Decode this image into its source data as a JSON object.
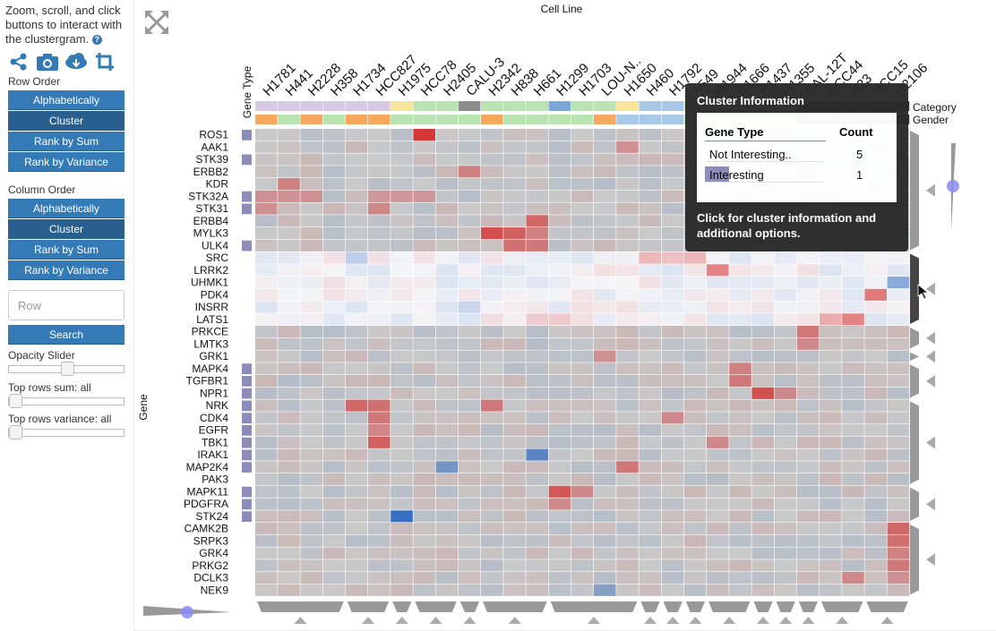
{
  "sidebar": {
    "intro": "Zoom, scroll, and click buttons to interact with the clustergram.",
    "help_icon": "?",
    "icons": [
      "share-icon",
      "camera-icon",
      "cloud-download-icon",
      "crop-icon"
    ],
    "row_order": {
      "label": "Row Order",
      "buttons": [
        "Alphabetically",
        "Cluster",
        "Rank by Sum",
        "Rank by Variance"
      ],
      "active": "Cluster"
    },
    "col_order": {
      "label": "Column Order",
      "buttons": [
        "Alphabetically",
        "Cluster",
        "Rank by Sum",
        "Rank by Variance"
      ],
      "active": "Cluster"
    },
    "search": {
      "placeholder": "Row",
      "button": "Search"
    },
    "opacity": {
      "label": "Opacity Slider",
      "value": 0.5
    },
    "top_sum": {
      "label": "Top rows sum: all",
      "value": 0
    },
    "top_var": {
      "label": "Top rows variance: all",
      "value": 0
    }
  },
  "heatmap": {
    "col_title": "Cell Line",
    "row_title": "Gene",
    "row_cat_title": "Gene Type",
    "col_cat_titles": [
      "Category",
      "Gender"
    ],
    "colors": {
      "bg": "#c9c9c9",
      "up": "#d62728",
      "down": "#1f5fbf",
      "interesting": "#8c8cb8",
      "accent": "#337ab7"
    },
    "columns": [
      "H1781",
      "H441",
      "H2228",
      "H358",
      "H1734",
      "HCC827",
      "H1975",
      "HCC78",
      "H2405",
      "CALU-3",
      "H2342",
      "H838",
      "H661",
      "H1299",
      "H1703",
      "LOU-N..",
      "H1650",
      "H460",
      "H1792",
      "A549",
      "H1944",
      "H1666",
      "H1437",
      "H1355",
      "CAL-12T",
      "HCC44",
      "H23",
      "HCC15",
      "H2106"
    ],
    "rows": [
      "ROS1",
      "AAK1",
      "STK39",
      "ERBB2",
      "KDR",
      "STK32A",
      "STK31",
      "ERBB4",
      "MYLK3",
      "ULK4",
      "SRC",
      "LRRK2",
      "UHMK1",
      "PDK4",
      "INSRR",
      "LATS1",
      "PRKCE",
      "LMTK3",
      "GRK1",
      "MAPK4",
      "TGFBR1",
      "NPR1",
      "NRK",
      "CDK4",
      "EGFR",
      "TBK1",
      "IRAK1",
      "MAP2K4",
      "PAK3",
      "MAPK11",
      "PDGFRA",
      "STK24",
      "CAMK2B",
      "SRPK3",
      "GRK4",
      "PRKG2",
      "DCLK3",
      "NEK9"
    ],
    "interesting_rows": [
      "ROS1",
      "STK39",
      "STK32A",
      "STK31",
      "ULK4",
      "MAPK4",
      "TGFBR1",
      "NPR1",
      "NRK",
      "CDK4",
      "EGFR",
      "TBK1",
      "IRAK1",
      "MAP2K4",
      "MAPK11",
      "PDGFRA",
      "STK24"
    ],
    "col_category": [
      "#d8c8e4",
      "#d8c8e4",
      "#d8c8e4",
      "#d8c8e4",
      "#d8c8e4",
      "#d8c8e4",
      "#f6e59a",
      "#b9e3b0",
      "#b9e3b0",
      "#8c8c8c",
      "#b9e3b0",
      "#b9e3b0",
      "#b9e3b0",
      "#7ba7d9",
      "#b9e3b0",
      "#b9e3b0",
      "#f6e59a",
      "#a8c8e8",
      "#a8c8e8",
      "#b9e3b0",
      "#b9e3b0",
      "#b9e3b0",
      "#b9e3b0",
      "#b9e3b0",
      "#2b2b2b",
      "#2b2b2b",
      "#2b2b2b",
      "#2b2b2b",
      "#2b2b2b"
    ],
    "col_gender": [
      "#f6a85e",
      "#b9e3b0",
      "#f6a85e",
      "#b9e3b0",
      "#f6a85e",
      "#f6a85e",
      "#b9e3b0",
      "#b9e3b0",
      "#b9e3b0",
      "#b9e3b0",
      "#f6a85e",
      "#b9e3b0",
      "#b9e3b0",
      "#b9e3b0",
      "#b9e3b0",
      "#f6a85e",
      "#a8c8e8",
      "#a8c8e8",
      "#a8c8e8",
      "#b9e3b0",
      "#b9e3b0",
      "#b9e3b0",
      "#b9e3b0",
      "#b9e3b0",
      "#2b2b2b",
      "#2b2b2b",
      "#2b2b2b",
      "#2b2b2b",
      "#2b2b2b"
    ],
    "hot_cells": [
      [
        0,
        7,
        0.9
      ],
      [
        1,
        16,
        0.35
      ],
      [
        3,
        9,
        0.45
      ],
      [
        4,
        1,
        0.45
      ],
      [
        5,
        0,
        0.35
      ],
      [
        5,
        1,
        0.35
      ],
      [
        5,
        2,
        0.35
      ],
      [
        5,
        5,
        0.3
      ],
      [
        5,
        6,
        0.3
      ],
      [
        5,
        7,
        0.3
      ],
      [
        6,
        0,
        0.35
      ],
      [
        6,
        5,
        0.4
      ],
      [
        7,
        12,
        0.6
      ],
      [
        8,
        10,
        0.75
      ],
      [
        8,
        11,
        0.65
      ],
      [
        8,
        12,
        0.45
      ],
      [
        9,
        11,
        0.55
      ],
      [
        9,
        12,
        0.5
      ],
      [
        10,
        18,
        0.25
      ],
      [
        10,
        17,
        0.3
      ],
      [
        10,
        19,
        0.3
      ],
      [
        11,
        20,
        0.55
      ],
      [
        13,
        27,
        0.6
      ],
      [
        15,
        26,
        0.55
      ],
      [
        15,
        25,
        0.35
      ],
      [
        15,
        12,
        0.2
      ],
      [
        15,
        13,
        0.2
      ],
      [
        16,
        24,
        0.5
      ],
      [
        17,
        24,
        0.4
      ],
      [
        18,
        15,
        0.35
      ],
      [
        19,
        21,
        0.45
      ],
      [
        20,
        21,
        0.5
      ],
      [
        21,
        22,
        0.75
      ],
      [
        21,
        23,
        0.4
      ],
      [
        22,
        4,
        0.6
      ],
      [
        22,
        5,
        0.55
      ],
      [
        23,
        5,
        0.5
      ],
      [
        24,
        5,
        0.4
      ],
      [
        25,
        5,
        0.65
      ],
      [
        22,
        10,
        0.5
      ],
      [
        23,
        18,
        0.4
      ],
      [
        25,
        20,
        0.4
      ],
      [
        27,
        16,
        0.5
      ],
      [
        29,
        13,
        0.7
      ],
      [
        29,
        14,
        0.4
      ],
      [
        30,
        13,
        0.4
      ],
      [
        32,
        28,
        0.6
      ],
      [
        33,
        28,
        0.55
      ],
      [
        34,
        28,
        0.45
      ],
      [
        35,
        28,
        0.5
      ],
      [
        36,
        26,
        0.4
      ],
      [
        36,
        28,
        0.35
      ]
    ],
    "cold_cells": [
      [
        31,
        6,
        0.85
      ],
      [
        27,
        8,
        0.5
      ],
      [
        26,
        12,
        0.65
      ],
      [
        37,
        15,
        0.4
      ],
      [
        12,
        28,
        0.5
      ],
      [
        10,
        4,
        0.25
      ],
      [
        14,
        9,
        0.2
      ]
    ],
    "row_dendro_groups": [
      [
        0,
        9
      ],
      [
        10,
        15
      ],
      [
        16,
        17
      ],
      [
        18,
        18
      ],
      [
        19,
        21
      ],
      [
        22,
        28
      ],
      [
        29,
        31
      ],
      [
        32,
        37
      ]
    ],
    "col_dendro_groups": [
      [
        0,
        3
      ],
      [
        4,
        5
      ],
      [
        6,
        6
      ],
      [
        7,
        8
      ],
      [
        9,
        9
      ],
      [
        10,
        12
      ],
      [
        13,
        16
      ],
      [
        17,
        17
      ],
      [
        18,
        18
      ],
      [
        19,
        19
      ],
      [
        20,
        21
      ],
      [
        22,
        22
      ],
      [
        23,
        23
      ],
      [
        24,
        24
      ],
      [
        25,
        26
      ],
      [
        27,
        28
      ]
    ]
  },
  "tooltip": {
    "title": "Cluster Information",
    "col1": "Gene Type",
    "col2": "Count",
    "rows": [
      {
        "name": "Not Interesting..",
        "count": "5",
        "fill": 0
      },
      {
        "name": "Interesting",
        "count": "1",
        "fill": 0.2
      }
    ],
    "footer": "Click for cluster information and additional options."
  }
}
